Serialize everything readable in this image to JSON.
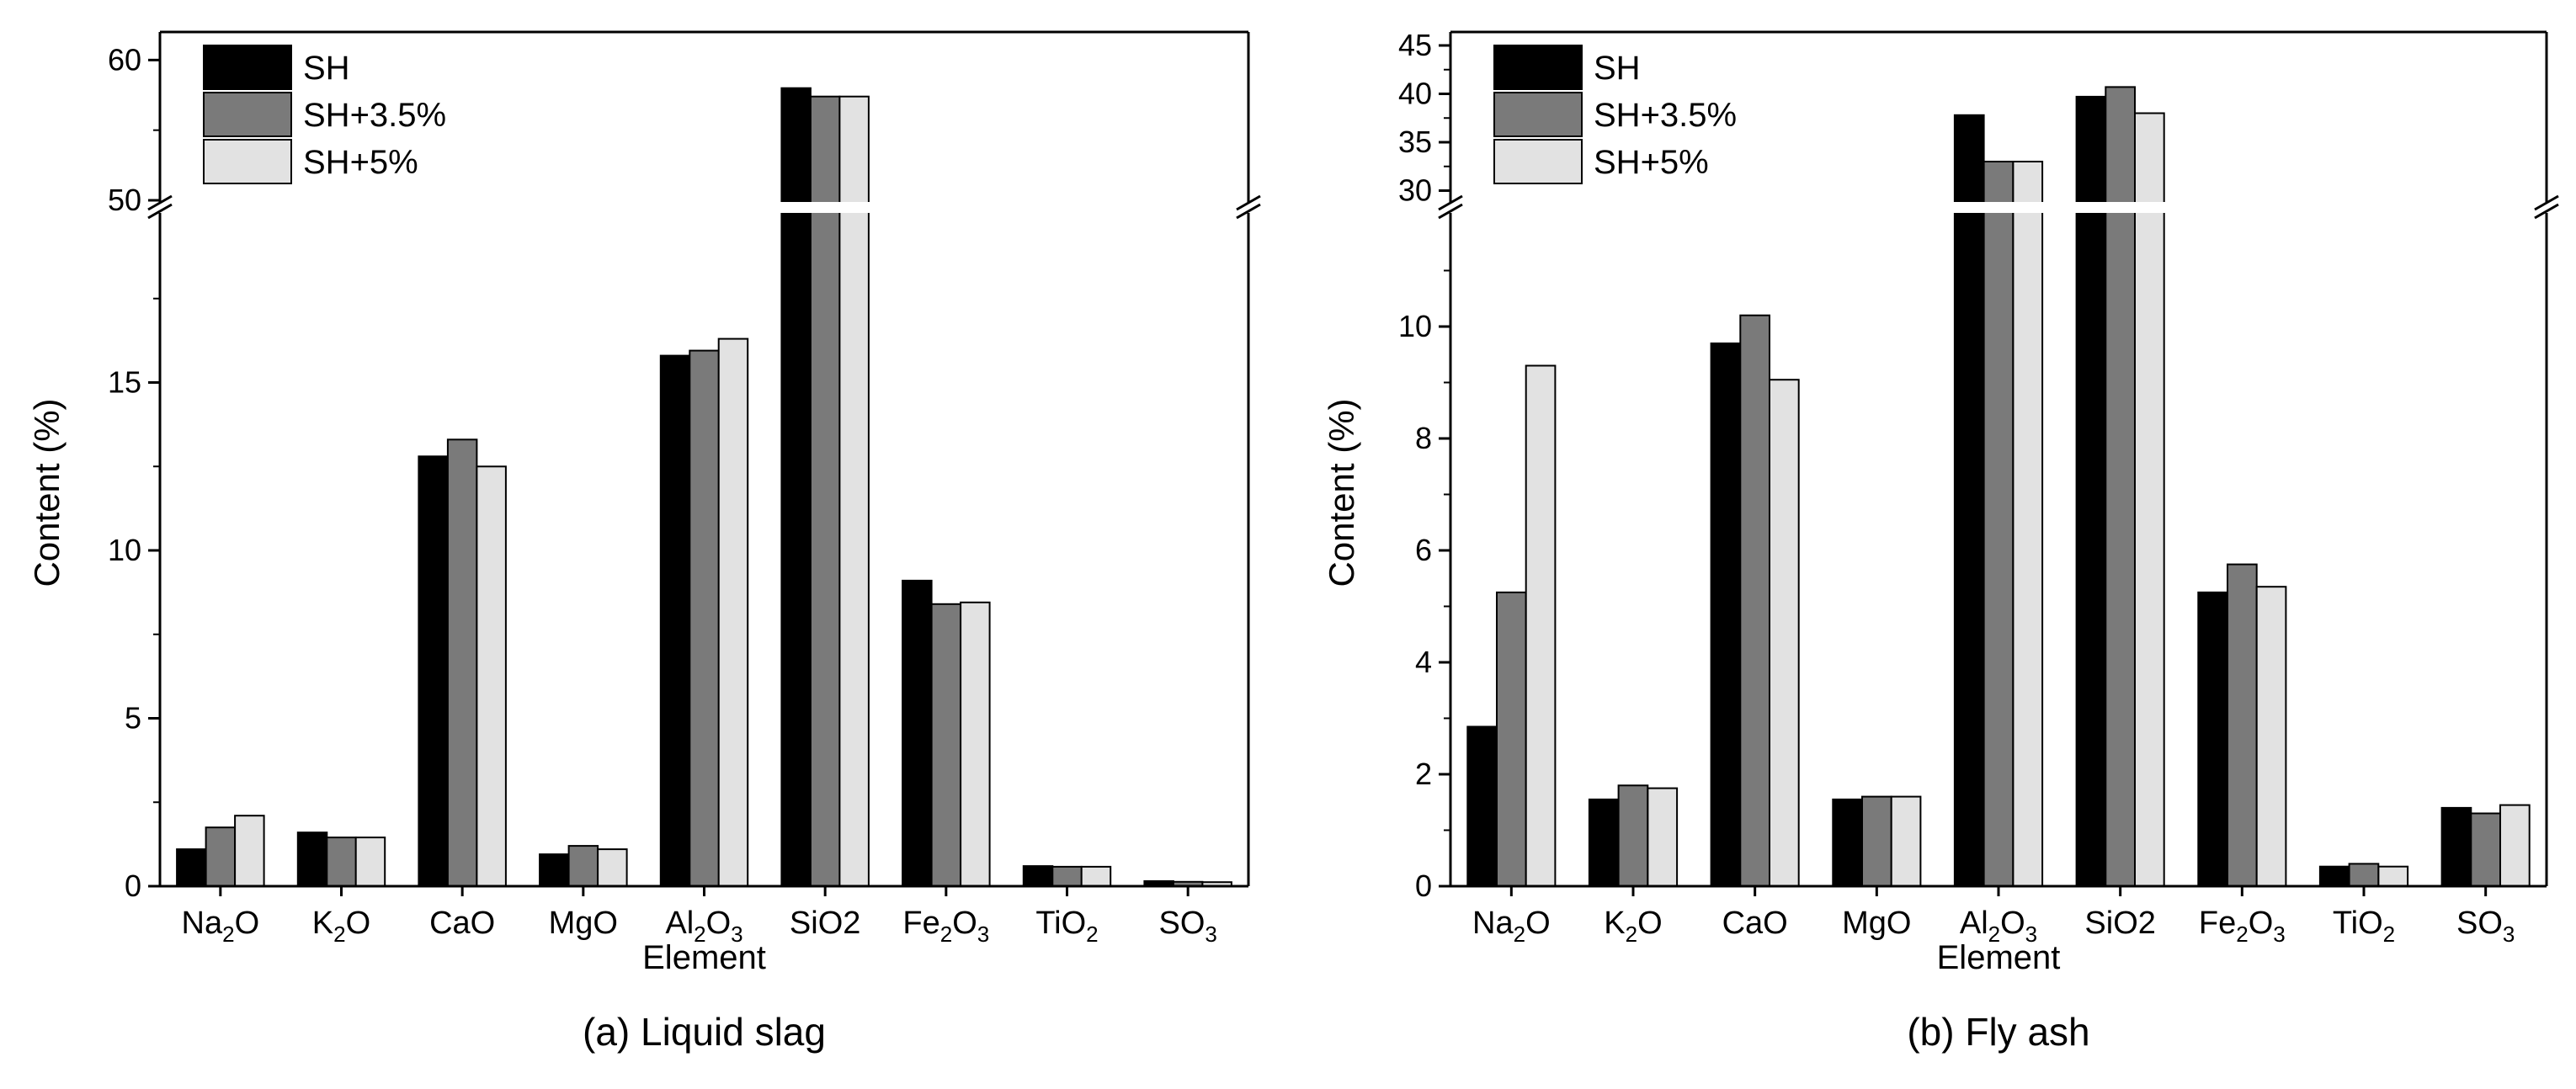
{
  "colors": {
    "SH": "#000000",
    "SH+3.5%": "#7a7a7a",
    "SH+5%": "#e2e2e2",
    "axis": "#000000"
  },
  "chart_data": [
    {
      "type": "bar",
      "caption": "(a) Liquid slag",
      "xlabel": "Element",
      "ylabel": "Content (%)",
      "categories": [
        {
          "base": "Na",
          "sub": "2",
          "tail": "O"
        },
        {
          "base": "K",
          "sub": "2",
          "tail": "O"
        },
        {
          "base": "CaO",
          "sub": "",
          "tail": ""
        },
        {
          "base": "MgO",
          "sub": "",
          "tail": ""
        },
        {
          "base": "Al",
          "sub": "2",
          "tail": "O",
          "sub2": "3"
        },
        {
          "base": "SiO2",
          "sub": "",
          "tail": ""
        },
        {
          "base": "Fe",
          "sub": "2",
          "tail": "O",
          "sub2": "3"
        },
        {
          "base": "TiO",
          "sub": "2",
          "tail": ""
        },
        {
          "base": "SO",
          "sub": "3",
          "tail": ""
        }
      ],
      "series": [
        {
          "name": "SH",
          "values": [
            1.1,
            1.6,
            12.8,
            0.95,
            15.8,
            58.0,
            9.1,
            0.6,
            0.15
          ]
        },
        {
          "name": "SH+3.5%",
          "values": [
            1.75,
            1.45,
            13.3,
            1.2,
            15.95,
            57.4,
            8.4,
            0.58,
            0.13
          ]
        },
        {
          "name": "SH+5%",
          "values": [
            2.1,
            1.45,
            12.5,
            1.1,
            16.3,
            57.4,
            8.45,
            0.58,
            0.12
          ]
        }
      ],
      "axis_break": {
        "lower_range": [
          0,
          20
        ],
        "upper_range": [
          50,
          62
        ]
      },
      "lower_ticks": [
        {
          "v": 0,
          "label": "0"
        },
        {
          "v": 5,
          "label": "5"
        },
        {
          "v": 10,
          "label": "10"
        },
        {
          "v": 15,
          "label": "15"
        }
      ],
      "upper_ticks": [
        {
          "v": 50,
          "label": "50"
        },
        {
          "v": 60,
          "label": "60"
        }
      ],
      "legend": [
        "SH",
        "SH+3.5%",
        "SH+5%"
      ],
      "legend_position": "top-left"
    },
    {
      "type": "bar",
      "caption": "(b) Fly ash",
      "xlabel": "Element",
      "ylabel": "Content (%)",
      "categories": [
        {
          "base": "Na",
          "sub": "2",
          "tail": "O"
        },
        {
          "base": "K",
          "sub": "2",
          "tail": "O"
        },
        {
          "base": "CaO",
          "sub": "",
          "tail": ""
        },
        {
          "base": "MgO",
          "sub": "",
          "tail": ""
        },
        {
          "base": "Al",
          "sub": "2",
          "tail": "O",
          "sub2": "3"
        },
        {
          "base": "SiO2",
          "sub": "",
          "tail": ""
        },
        {
          "base": "Fe",
          "sub": "2",
          "tail": "O",
          "sub2": "3"
        },
        {
          "base": "TiO",
          "sub": "2",
          "tail": ""
        },
        {
          "base": "SO",
          "sub": "3",
          "tail": ""
        }
      ],
      "series": [
        {
          "name": "SH",
          "values": [
            2.85,
            1.55,
            9.7,
            1.55,
            37.8,
            39.7,
            5.25,
            0.35,
            1.4
          ]
        },
        {
          "name": "SH+3.5%",
          "values": [
            5.25,
            1.8,
            10.2,
            1.6,
            33.0,
            40.7,
            5.75,
            0.4,
            1.3
          ]
        },
        {
          "name": "SH+5%",
          "values": [
            9.3,
            1.75,
            9.05,
            1.6,
            33.0,
            38.0,
            5.35,
            0.35,
            1.45
          ]
        }
      ],
      "axis_break": {
        "lower_range": [
          0,
          12
        ],
        "upper_range": [
          29,
          45
        ]
      },
      "lower_ticks": [
        {
          "v": 0,
          "label": "0"
        },
        {
          "v": 2,
          "label": "2"
        },
        {
          "v": 4,
          "label": "4"
        },
        {
          "v": 6,
          "label": "6"
        },
        {
          "v": 8,
          "label": "8"
        },
        {
          "v": 10,
          "label": "10"
        }
      ],
      "upper_ticks": [
        {
          "v": 30,
          "label": "30"
        },
        {
          "v": 35,
          "label": "35"
        },
        {
          "v": 40,
          "label": "40"
        },
        {
          "v": 45,
          "label": "45"
        }
      ],
      "legend": [
        "SH",
        "SH+3.5%",
        "SH+5%"
      ],
      "legend_position": "top-left"
    }
  ]
}
